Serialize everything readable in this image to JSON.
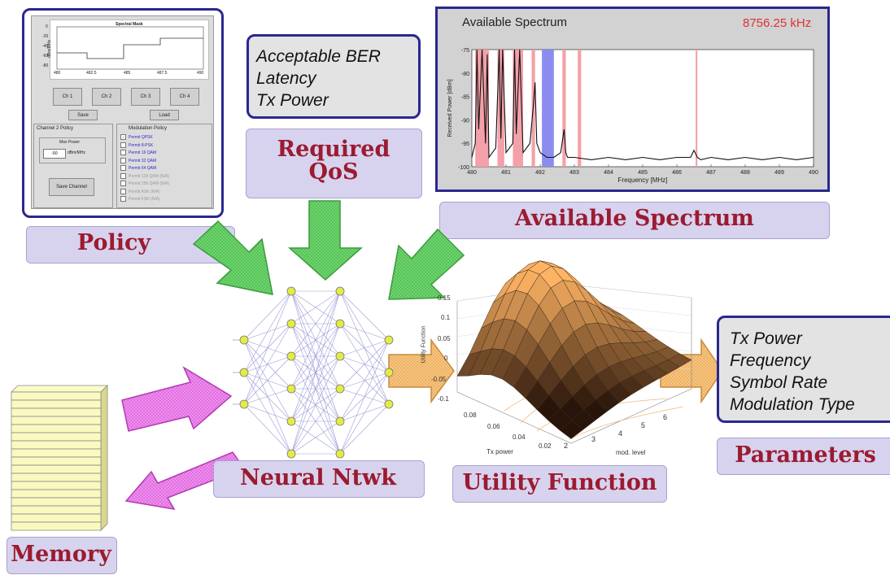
{
  "policy": {
    "label": "Policy",
    "panel": {
      "mask_title": "Spectral Mask",
      "y_axis_label": "dBm/MHz",
      "y_ticks": [
        "0",
        "-20",
        "-40",
        "-60",
        "-80"
      ],
      "x_ticks": [
        "480",
        "482.5",
        "485",
        "487.5",
        "490"
      ],
      "channel_buttons": [
        "Ch 1",
        "Ch 2",
        "Ch 3",
        "Ch 4"
      ],
      "save_label": "Save",
      "load_label": "Load",
      "channel_policy_title": "Channel 2 Policy",
      "max_power_label": "Max Power",
      "max_power_value": "-50",
      "max_power_unit": "dBm/MHz",
      "save_channel_label": "Save Channel",
      "modulation_title": "Modulation Policy",
      "modulations": [
        {
          "label": "Permit  QPSK",
          "enabled": true,
          "checked": true
        },
        {
          "label": "Permit  8-PSK",
          "enabled": true,
          "checked": false
        },
        {
          "label": "Permit  16 QAM",
          "enabled": true,
          "checked": false
        },
        {
          "label": "Permit  32 QAM",
          "enabled": true,
          "checked": false
        },
        {
          "label": "Permit  64 QAM",
          "enabled": true,
          "checked": false
        },
        {
          "label": "Permit 128 QAM (N/A)",
          "enabled": false,
          "checked": false
        },
        {
          "label": "Permit 256 QAM (N/A)",
          "enabled": false,
          "checked": false
        },
        {
          "label": "Permit ASK (N/A)",
          "enabled": false,
          "checked": false
        },
        {
          "label": "Permit FSK (N/A)",
          "enabled": false,
          "checked": false
        }
      ]
    }
  },
  "qos": {
    "label_line1": "Required",
    "label_line2": "QoS",
    "items": [
      "Acceptable BER",
      "Latency",
      "Tx Power"
    ]
  },
  "spectrum": {
    "label": "Available Spectrum",
    "panel_title": "Available Spectrum",
    "readout": "8756.25 kHz",
    "readout_color": "#e03030",
    "chart_data": {
      "type": "line",
      "xlabel": "Frequency [MHz]",
      "ylabel": "Received Power [dBm]",
      "xlim": [
        480,
        490
      ],
      "ylim": [
        -100,
        -75
      ],
      "x_ticks": [
        "480",
        "481",
        "482",
        "483",
        "484",
        "485",
        "486",
        "487",
        "488",
        "489",
        "490"
      ],
      "y_ticks": [
        "-75",
        "-80",
        "-85",
        "-90",
        "-95",
        "-100"
      ],
      "occupied_bands": [
        [
          480.1,
          480.5
        ],
        [
          480.75,
          480.95
        ],
        [
          481.2,
          481.5
        ],
        [
          481.75,
          481.85
        ],
        [
          482.65,
          482.75
        ],
        [
          483.1,
          483.2
        ],
        [
          486.55,
          486.6
        ]
      ],
      "selected_band": [
        482.05,
        482.4
      ],
      "band_color": "#f4a0a8",
      "selected_color": "#8c8cf0",
      "x": [
        480,
        480.1,
        480.15,
        480.2,
        480.3,
        480.4,
        480.45,
        480.5,
        480.6,
        480.7,
        480.8,
        480.85,
        480.9,
        481,
        481.1,
        481.2,
        481.25,
        481.3,
        481.4,
        481.5,
        481.6,
        481.7,
        481.8,
        481.85,
        481.9,
        482,
        482.2,
        482.4,
        482.6,
        482.7,
        482.75,
        482.8,
        483,
        483.5,
        484,
        484.5,
        485,
        485.5,
        486,
        486.4,
        486.5,
        486.6,
        486.7,
        487,
        487.5,
        488,
        488.5,
        489,
        489.5,
        490
      ],
      "y": [
        -98,
        -95,
        -75,
        -92,
        -75,
        -95,
        -76,
        -98,
        -97,
        -96,
        -75,
        -94,
        -75,
        -97,
        -96,
        -95,
        -75,
        -93,
        -75,
        -97,
        -96,
        -95,
        -87,
        -82,
        -95,
        -97,
        -98,
        -98,
        -97,
        -92,
        -97,
        -98,
        -98,
        -98.5,
        -98,
        -98.5,
        -98,
        -98.5,
        -98,
        -98,
        -96.5,
        -98,
        -98.5,
        -98,
        -98.5,
        -98,
        -98.5,
        -98,
        -98.5,
        -98
      ]
    }
  },
  "neural": {
    "label": "Neural Ntwk"
  },
  "utility": {
    "label": "Utility Function",
    "z_label": "Utility Function",
    "z_ticks": [
      "0.15",
      "0.1",
      "0.05",
      "0",
      "-0.05",
      "-0.1"
    ],
    "x_label": "Tx power",
    "x_ticks": [
      "0.08",
      "0.06",
      "0.04",
      "0.02"
    ],
    "y_label": "mod. level",
    "y_ticks": [
      "2",
      "3",
      "4",
      "5",
      "6"
    ]
  },
  "parameters": {
    "label": "Parameters",
    "items": [
      "Tx Power",
      "Frequency",
      "Symbol Rate",
      "Modulation Type"
    ]
  },
  "memory": {
    "label": "Memory"
  }
}
